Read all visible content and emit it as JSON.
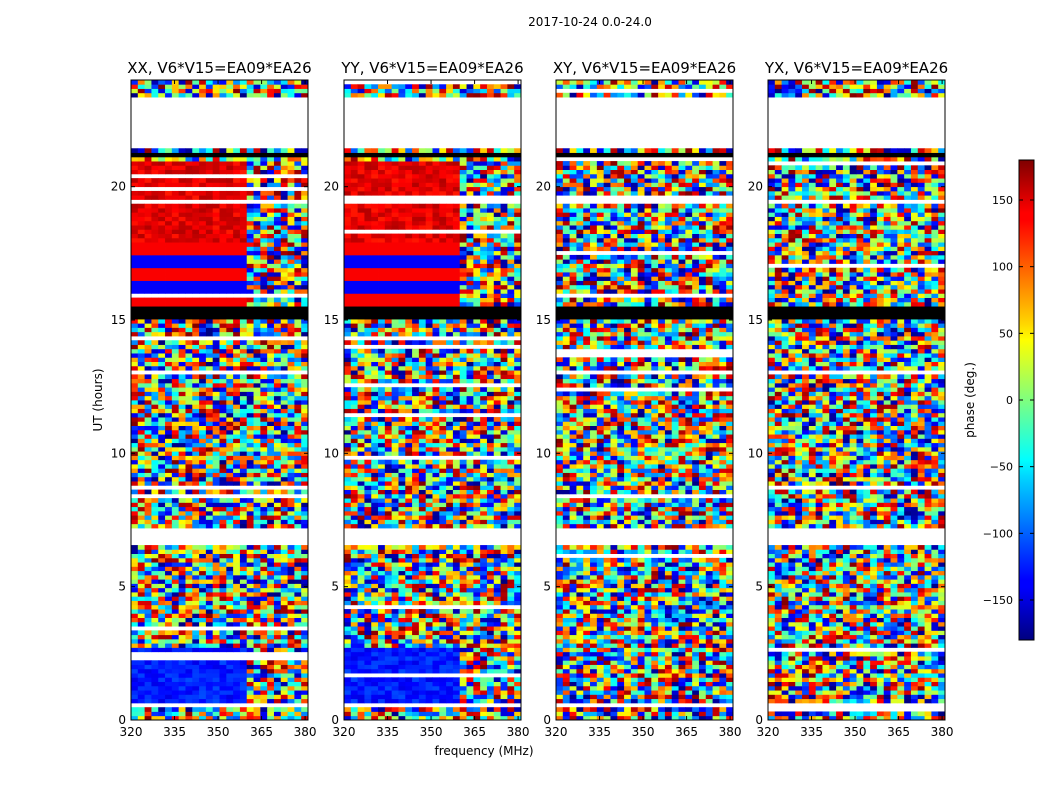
{
  "chart_data": {
    "type": "heatmap",
    "title": "2017-10-24 0.0-24.0",
    "xlabel": "frequency (MHz)",
    "ylabel": "UT (hours)",
    "colorbar_label": "phase (deg.)",
    "colorbar_range": [
      -180,
      180
    ],
    "colorbar_ticks": [
      "150",
      "100",
      "50",
      "0",
      "−50",
      "−100",
      "−150"
    ],
    "colorbar_tick_values": [
      150,
      100,
      50,
      0,
      -50,
      -100,
      -150
    ],
    "colormap": "jet",
    "x_range": [
      320,
      381
    ],
    "y_range": [
      0,
      24
    ],
    "x_ticks": [
      "320",
      "335",
      "350",
      "365",
      "380"
    ],
    "x_tick_values": [
      320,
      335,
      350,
      365,
      380
    ],
    "y_ticks": [
      "0",
      "5",
      "10",
      "15",
      "20"
    ],
    "y_tick_values": [
      0,
      5,
      10,
      15,
      20
    ],
    "panels": [
      {
        "title": "XX, V6*V15=EA09*EA26",
        "pattern": "parallel",
        "coherent_band_MHz": [
          320,
          359
        ]
      },
      {
        "title": "YY, V6*V15=EA09*EA26",
        "pattern": "parallel",
        "coherent_band_MHz": [
          320,
          359
        ]
      },
      {
        "title": "XY, V6*V15=EA09*EA26",
        "pattern": "cross"
      },
      {
        "title": "YX, V6*V15=EA09*EA26",
        "pattern": "cross"
      }
    ],
    "blank_intervals_UT": [
      [
        0.45,
        0.6
      ],
      [
        6.6,
        7.2
      ],
      [
        21.5,
        23.3
      ],
      [
        19.3,
        19.5
      ]
    ],
    "flagged_intervals_UT": [
      [
        15.0,
        15.5
      ],
      [
        19.4,
        19.5
      ],
      [
        21.1,
        21.2
      ]
    ]
  },
  "colors": {
    "jet_low": "#00007f",
    "jet_high": "#7f0000",
    "flagged": "#000000",
    "blank": "#ffffff"
  }
}
